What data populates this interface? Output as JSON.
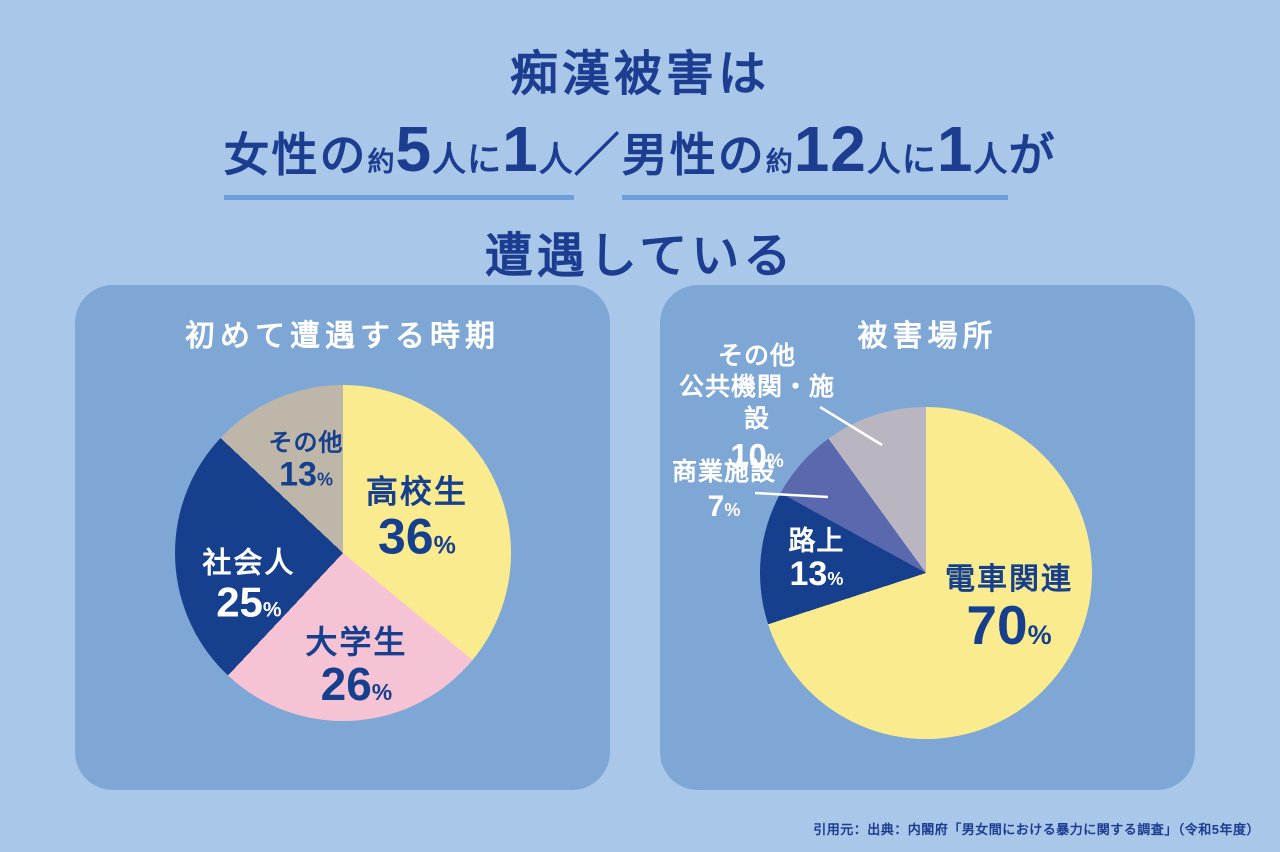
{
  "page": {
    "background": "#A9C8E9",
    "panel_color": "#7FA7D5",
    "navy": "#16408E",
    "underline_color": "#6D9EDC"
  },
  "title": {
    "line1": "痴漢被害は",
    "line2_groups": [
      {
        "underline": true,
        "parts": [
          {
            "text": "女性の",
            "size": "base"
          },
          {
            "text": "約",
            "size": "small"
          },
          {
            "text": "5",
            "size": "big"
          },
          {
            "text": "人に",
            "size": "mid"
          },
          {
            "text": "1",
            "size": "big"
          },
          {
            "text": "人",
            "size": "mid"
          }
        ]
      },
      {
        "underline": false,
        "parts": [
          {
            "text": "／",
            "size": "base"
          }
        ]
      },
      {
        "underline": true,
        "parts": [
          {
            "text": "男性の",
            "size": "base"
          },
          {
            "text": "約",
            "size": "small"
          },
          {
            "text": "12",
            "size": "big"
          },
          {
            "text": "人に",
            "size": "mid"
          },
          {
            "text": "1",
            "size": "big"
          },
          {
            "text": "人",
            "size": "mid"
          }
        ]
      },
      {
        "underline": false,
        "parts": [
          {
            "text": "が",
            "size": "base"
          }
        ]
      }
    ],
    "line3": "遭遇している"
  },
  "chart_data": [
    {
      "type": "pie",
      "title": "初めて遭遇する時期",
      "unit": "%",
      "start_angle_deg": 0,
      "direction": "clockwise",
      "legend_position": "inside",
      "segments": [
        {
          "label": "高校生",
          "value": 36,
          "color": "#FAEC8E",
          "text_color": "#16408E"
        },
        {
          "label": "大学生",
          "value": 26,
          "color": "#F5C3D4",
          "text_color": "#16408E"
        },
        {
          "label": "社会人",
          "value": 25,
          "color": "#16408E",
          "text_color": "#FFFFFF"
        },
        {
          "label": "その他",
          "value": 13,
          "color": "#BDB6A9",
          "text_color": "#16408E"
        }
      ]
    },
    {
      "type": "pie",
      "title": "被害場所",
      "unit": "%",
      "start_angle_deg": 0,
      "direction": "clockwise",
      "legend_position": "mixed",
      "segments": [
        {
          "label": "電車関連",
          "value": 70,
          "color": "#FAEC8E",
          "text_color": "#16408E",
          "label_position": "inside"
        },
        {
          "label": "路上",
          "value": 13,
          "color": "#16408E",
          "text_color": "#FFFFFF",
          "label_position": "inside"
        },
        {
          "label": "商業施設",
          "value": 7,
          "color": "#5A68AE",
          "text_color": "#FFFFFF",
          "label_position": "outside",
          "label_lines": [
            "商業施設"
          ]
        },
        {
          "label": "その他 公共機関・施設",
          "value": 10,
          "color": "#B9B6C1",
          "text_color": "#FFFFFF",
          "label_position": "outside",
          "label_lines": [
            "その他",
            "公共機関・施設"
          ]
        }
      ]
    }
  ],
  "footer": {
    "source": "引用元：出典：内閣府「男女間における暴力に関する調査」（令和5年度）"
  }
}
